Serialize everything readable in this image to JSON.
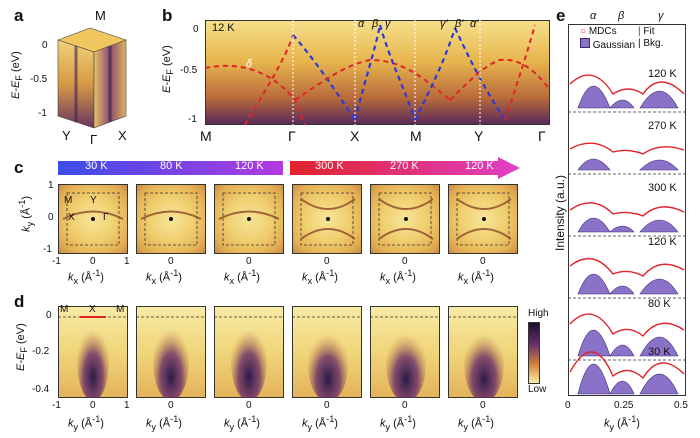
{
  "panel_labels": {
    "a": "a",
    "b": "b",
    "c": "c",
    "d": "d",
    "e": "e"
  },
  "panel_a": {
    "ylabel": "E-E",
    "ylabel_sub": "F",
    "ylabel_unit": " (eV)",
    "yticks": [
      "0",
      "-0.5",
      "-1"
    ],
    "points": {
      "top": "M",
      "left": "Y",
      "mid": "Γ",
      "right": "X"
    }
  },
  "panel_b": {
    "temperature": "12 K",
    "ylabel": "E-E",
    "ylabel_sub": "F",
    "ylabel_unit": " (eV)",
    "yticks": [
      "0",
      "-0.5",
      "-1"
    ],
    "xpoints": [
      "M",
      "Γ",
      "X",
      "M",
      "Y",
      "Γ"
    ],
    "band_labels": [
      "δ",
      "α",
      "β",
      "γ",
      "γ'",
      "β'",
      "α'"
    ]
  },
  "panel_c": {
    "arrow_left": [
      "30 K",
      "80 K",
      "120 K"
    ],
    "arrow_right": [
      "300 K",
      "270 K",
      "120 K"
    ],
    "ylabel": "k",
    "ylabel_sub": "y",
    "ylabel_unit": " (Å",
    "yticks": [
      "1",
      "0",
      "-1"
    ],
    "xticks": [
      "-1",
      "0",
      "1"
    ],
    "xlabel": "k",
    "xlabel_sub": "x",
    "xlabel_unit": " (Å",
    "points": [
      "M",
      "Y",
      "X",
      "Γ"
    ]
  },
  "panel_d": {
    "ylabel": "E-E",
    "ylabel_sub": "F",
    "ylabel_unit": " (eV)",
    "yticks": [
      "0",
      "-0.2",
      "-0.4"
    ],
    "xticks": [
      "-1",
      "0",
      "1"
    ],
    "xlabel": "k",
    "xlabel_sub": "y",
    "xlabel_unit": " (Å",
    "points": [
      "M",
      "X",
      "M"
    ],
    "colorbar_high": "High",
    "colorbar_low": "Low"
  },
  "panel_e": {
    "top_labels": [
      "α",
      "β",
      "γ"
    ],
    "legend": {
      "mdcs": "MDCs",
      "fit": "Fit",
      "gaussian": "Gaussian",
      "bkg": "Bkg."
    },
    "temperatures": [
      "120 K",
      "270 K",
      "300 K",
      "120 K",
      "80 K",
      "30 K"
    ],
    "ylabel": "Intensity (a.u.)",
    "xlabel": "k",
    "xlabel_sub": "y",
    "xlabel_unit": " (Å",
    "xticks": [
      "0",
      "0.25",
      "0.5"
    ]
  },
  "unit_sup": "-1",
  "unit_close": ")",
  "colors": {
    "blue_band": "#2a3bd8",
    "red_band": "#e0242a",
    "arrow_start": "#3a4de8",
    "arrow_mid": "#b23ae0",
    "arrow_end": "#e040c8",
    "gaussian": "#8a72c8"
  }
}
